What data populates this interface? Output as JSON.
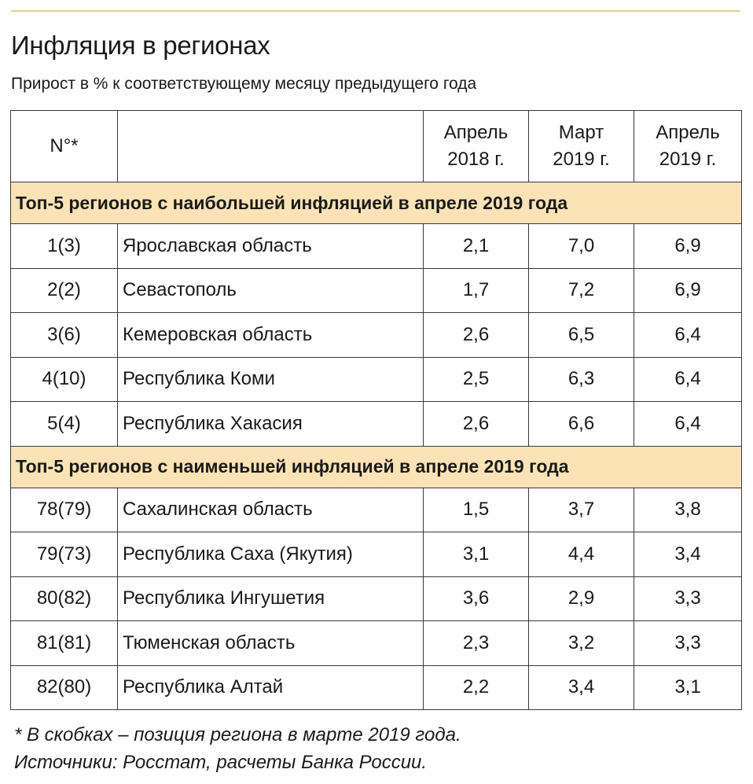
{
  "title": "Инфляция в регионах",
  "subtitle": "Прирост в % к соответствующему месяцу предыдущего года",
  "table": {
    "headers": {
      "no": "N°*",
      "region": "",
      "col1_line1": "Апрель",
      "col1_line2": "2018 г.",
      "col2_line1": "Март",
      "col2_line2": "2019 г.",
      "col3_line1": "Апрель",
      "col3_line2": "2019 г."
    },
    "sections": [
      {
        "title": "Топ-5 регионов с наибольшей инфляцией в апреле 2019 года",
        "rows": [
          {
            "no": "1(3)",
            "region": "Ярославская область",
            "v1": "2,1",
            "v2": "7,0",
            "v3": "6,9"
          },
          {
            "no": "2(2)",
            "region": "Севастополь",
            "v1": "1,7",
            "v2": "7,2",
            "v3": "6,9"
          },
          {
            "no": "3(6)",
            "region": "Кемеровская область",
            "v1": "2,6",
            "v2": "6,5",
            "v3": "6,4"
          },
          {
            "no": "4(10)",
            "region": "Республика Коми",
            "v1": "2,5",
            "v2": "6,3",
            "v3": "6,4"
          },
          {
            "no": "5(4)",
            "region": "Республика Хакасия",
            "v1": "2,6",
            "v2": "6,6",
            "v3": "6,4"
          }
        ]
      },
      {
        "title": "Топ-5 регионов с наименьшей инфляцией в апреле 2019 года",
        "rows": [
          {
            "no": "78(79)",
            "region": "Сахалинская область",
            "v1": "1,5",
            "v2": "3,7",
            "v3": "3,8"
          },
          {
            "no": "79(73)",
            "region": "Республика Саха (Якутия)",
            "v1": "3,1",
            "v2": "4,4",
            "v3": "3,4"
          },
          {
            "no": "80(82)",
            "region": "Республика Ингушетия",
            "v1": "3,6",
            "v2": "2,9",
            "v3": "3,3"
          },
          {
            "no": "81(81)",
            "region": "Тюменская область",
            "v1": "2,3",
            "v2": "3,2",
            "v3": "3,3"
          },
          {
            "no": "82(80)",
            "region": "Республика Алтай",
            "v1": "2,2",
            "v2": "3,4",
            "v3": "3,1"
          }
        ]
      }
    ]
  },
  "footnotes": {
    "note": "* В скобках – позиция региона в марте 2019 года.",
    "sources": "Источники: Росстат, расчеты Банка России."
  },
  "colors": {
    "accent_rule": "#e7cf86",
    "section_fill": "#fbe3b5",
    "border": "#3a3a3a"
  }
}
